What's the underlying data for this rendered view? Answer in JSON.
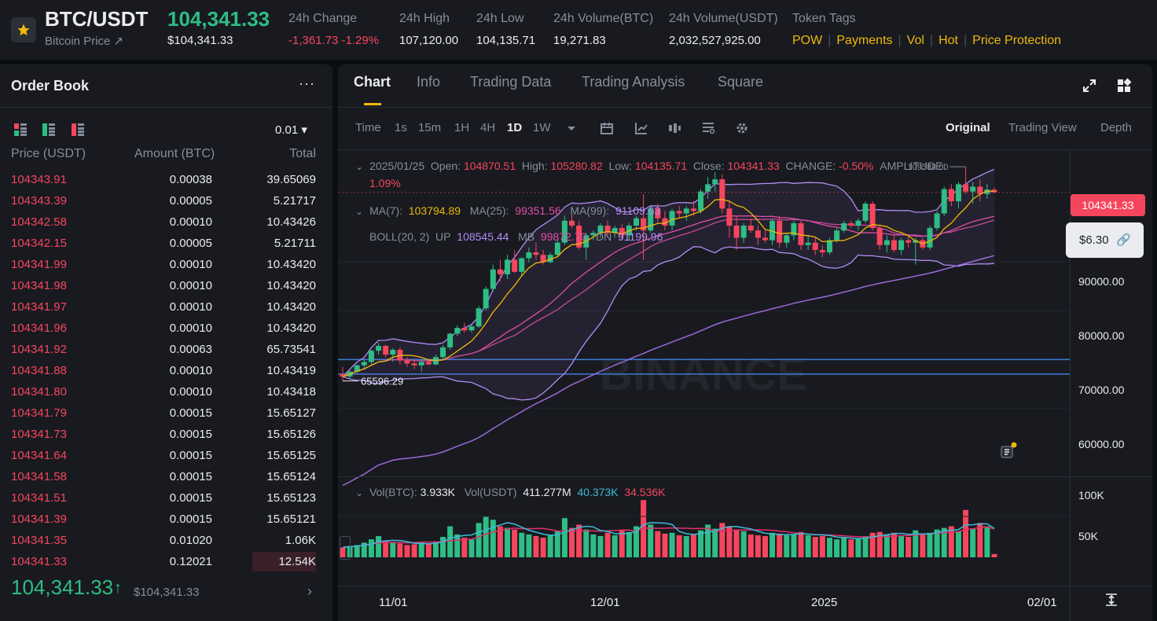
{
  "header": {
    "pair": "BTC/USDT",
    "subtitle": "Bitcoin Price ↗",
    "last_price": "104,341.33",
    "last_price_usd": "$104,341.33",
    "stats": [
      {
        "label": "24h Change",
        "value": "-1,361.73 -1.29%"
      },
      {
        "label": "24h High",
        "value": "107,120.00"
      },
      {
        "label": "24h Low",
        "value": "104,135.71"
      },
      {
        "label": "24h Volume(BTC)",
        "value": "19,271.83"
      },
      {
        "label": "24h Volume(USDT)",
        "value": "2,032,527,925.00"
      }
    ],
    "tags_label": "Token Tags",
    "tags": [
      "POW",
      "Payments",
      "Vol",
      "Hot",
      "Price Protection"
    ]
  },
  "order_book": {
    "title": "Order Book",
    "more": "···",
    "tick": "0.01 ▾",
    "cols": {
      "price": "Price (USDT)",
      "amount": "Amount (BTC)",
      "total": "Total"
    },
    "asks": [
      {
        "price": "104343.91",
        "amount": "0.00038",
        "total": "39.65069"
      },
      {
        "price": "104343.39",
        "amount": "0.00005",
        "total": "5.21717"
      },
      {
        "price": "104342.58",
        "amount": "0.00010",
        "total": "10.43426"
      },
      {
        "price": "104342.15",
        "amount": "0.00005",
        "total": "5.21711"
      },
      {
        "price": "104341.99",
        "amount": "0.00010",
        "total": "10.43420"
      },
      {
        "price": "104341.98",
        "amount": "0.00010",
        "total": "10.43420"
      },
      {
        "price": "104341.97",
        "amount": "0.00010",
        "total": "10.43420"
      },
      {
        "price": "104341.96",
        "amount": "0.00010",
        "total": "10.43420"
      },
      {
        "price": "104341.92",
        "amount": "0.00063",
        "total": "65.73541"
      },
      {
        "price": "104341.88",
        "amount": "0.00010",
        "total": "10.43419"
      },
      {
        "price": "104341.80",
        "amount": "0.00010",
        "total": "10.43418"
      },
      {
        "price": "104341.79",
        "amount": "0.00015",
        "total": "15.65127"
      },
      {
        "price": "104341.73",
        "amount": "0.00015",
        "total": "15.65126"
      },
      {
        "price": "104341.64",
        "amount": "0.00015",
        "total": "15.65125"
      },
      {
        "price": "104341.58",
        "amount": "0.00015",
        "total": "15.65124"
      },
      {
        "price": "104341.51",
        "amount": "0.00015",
        "total": "15.65123"
      },
      {
        "price": "104341.39",
        "amount": "0.00015",
        "total": "15.65121"
      },
      {
        "price": "104341.35",
        "amount": "0.01020",
        "total": "1.06K"
      },
      {
        "price": "104341.33",
        "amount": "0.12021",
        "total": "12.54K"
      }
    ],
    "mid_price": "104,341.33",
    "mid_arrow": "↑",
    "mid_usd": "$104,341.33",
    "mid_chevron": "›"
  },
  "chart": {
    "tabs": [
      "Chart",
      "Info",
      "Trading Data",
      "Trading Analysis",
      "Square"
    ],
    "intervals": [
      "Time",
      "1s",
      "15m",
      "1H",
      "4H",
      "1D",
      "1W"
    ],
    "selected_interval": "1D",
    "views": [
      "Original",
      "Trading View",
      "Depth"
    ],
    "selected_view": "Original",
    "ohlc": {
      "date": "2025/01/25",
      "open_label": "Open:",
      "open": "104870.51",
      "high_label": "High:",
      "high": "105280.82",
      "low_label": "Low:",
      "low": "104135.71",
      "close_label": "Close:",
      "close": "104341.33",
      "change_label": "CHANGE:",
      "change": "-0.50%",
      "amp_label": "AMPLITUDE:",
      "amp": "1.09%"
    },
    "ma": {
      "ma7_label": "MA(7):",
      "ma7": "103794.89",
      "ma25_label": "MA(25):",
      "ma25": "99351.56",
      "ma99_label": "MA(99):",
      "ma99": "91109.63"
    },
    "boll": {
      "label": "BOLL(20, 2)",
      "up_label": "UP",
      "up": "108545.44",
      "mb_label": "MB",
      "mb": "99872.70",
      "dn_label": "DN",
      "dn": "91199.96"
    },
    "high_marker": "109588.00",
    "low_marker": "65596.29",
    "price_axis": [
      "90000.00",
      "80000.00",
      "70000.00",
      "60000.00"
    ],
    "current_price_tag": "104341.33",
    "pnl_tag": "$6.30",
    "volume": {
      "vol_btc_label": "Vol(BTC):",
      "vol_btc": "3.933K",
      "vol_usdt_label": "Vol(USDT)",
      "vol_usdt": "411.277M",
      "ma_a": "40.373K",
      "ma_b": "34.536K",
      "axis": [
        "100K",
        "50K"
      ]
    },
    "dates": [
      "11/01",
      "12/01",
      "2025",
      "02/01"
    ],
    "watermark": "BINANCE",
    "colors": {
      "up": "#2ebd85",
      "down": "#f6465d",
      "accent": "#f0b90b"
    }
  },
  "chart_data": {
    "type": "candlestick",
    "title": "BTC/USDT 1D",
    "ylim": [
      55000,
      112000
    ],
    "yticks": [
      60000,
      70000,
      80000,
      90000
    ],
    "candles": [
      [
        67000,
        68500,
        65600,
        66500
      ],
      [
        66500,
        67800,
        66000,
        67500
      ],
      [
        67500,
        69000,
        67000,
        68800
      ],
      [
        68800,
        70000,
        68000,
        69500
      ],
      [
        69500,
        72000,
        69000,
        71800
      ],
      [
        71800,
        73500,
        71000,
        72800
      ],
      [
        72800,
        73000,
        70500,
        71000
      ],
      [
        71000,
        72300,
        69500,
        72000
      ],
      [
        72000,
        72500,
        69000,
        69800
      ],
      [
        69800,
        70500,
        68500,
        69200
      ],
      [
        69200,
        70000,
        68000,
        68800
      ],
      [
        68800,
        69800,
        67500,
        69500
      ],
      [
        69500,
        70200,
        68800,
        69000
      ],
      [
        69000,
        71000,
        68800,
        70500
      ],
      [
        70500,
        73000,
        70000,
        72500
      ],
      [
        72500,
        75500,
        72000,
        75300
      ],
      [
        75300,
        77000,
        74800,
        76500
      ],
      [
        76500,
        77500,
        75500,
        76000
      ],
      [
        76000,
        77200,
        75500,
        76800
      ],
      [
        76800,
        81000,
        76500,
        80500
      ],
      [
        80500,
        85000,
        80000,
        84500
      ],
      [
        84500,
        89500,
        84000,
        88500
      ],
      [
        88500,
        90500,
        86000,
        87500
      ],
      [
        87500,
        91500,
        86500,
        90500
      ],
      [
        90500,
        92500,
        87800,
        88000
      ],
      [
        88000,
        91000,
        87000,
        90800
      ],
      [
        90800,
        93000,
        90000,
        92000
      ],
      [
        92000,
        94000,
        90500,
        91500
      ],
      [
        91500,
        92500,
        89500,
        90000
      ],
      [
        90000,
        92000,
        89800,
        91500
      ],
      [
        91500,
        94500,
        91000,
        94000
      ],
      [
        94000,
        99500,
        93500,
        98500
      ],
      [
        98500,
        99800,
        97000,
        97500
      ],
      [
        97500,
        98500,
        92500,
        93000
      ],
      [
        93000,
        96000,
        90500,
        95500
      ],
      [
        95500,
        96500,
        94500,
        96000
      ],
      [
        96000,
        98000,
        95000,
        97500
      ],
      [
        97500,
        98500,
        95500,
        96000
      ],
      [
        96000,
        97500,
        95000,
        97000
      ],
      [
        97000,
        97800,
        94500,
        95500
      ],
      [
        95500,
        98000,
        94500,
        97500
      ],
      [
        97500,
        99500,
        96500,
        99000
      ],
      [
        99000,
        104000,
        90500,
        96500
      ],
      [
        96500,
        101500,
        96000,
        101000
      ],
      [
        101000,
        102000,
        98000,
        99000
      ],
      [
        99000,
        100500,
        96500,
        97500
      ],
      [
        97500,
        101000,
        96500,
        100500
      ],
      [
        100500,
        101500,
        99000,
        100000
      ],
      [
        100000,
        101500,
        98500,
        101000
      ],
      [
        101000,
        102500,
        99500,
        100500
      ],
      [
        100500,
        105000,
        100000,
        104500
      ],
      [
        104500,
        107500,
        103000,
        106000
      ],
      [
        106000,
        108500,
        104500,
        107000
      ],
      [
        107000,
        108000,
        100000,
        101000
      ],
      [
        101000,
        102500,
        95000,
        97500
      ],
      [
        97500,
        99500,
        92500,
        95000
      ],
      [
        95000,
        98000,
        94000,
        97500
      ],
      [
        97500,
        99000,
        96000,
        96500
      ],
      [
        96500,
        97500,
        93500,
        95000
      ],
      [
        95000,
        96500,
        94000,
        94500
      ],
      [
        94500,
        99000,
        93500,
        98500
      ],
      [
        98500,
        99500,
        93000,
        94000
      ],
      [
        94000,
        96000,
        93000,
        95500
      ],
      [
        95500,
        98500,
        94500,
        98000
      ],
      [
        98000,
        98500,
        92500,
        93500
      ],
      [
        93500,
        95500,
        92500,
        94000
      ],
      [
        94000,
        95000,
        91500,
        92500
      ],
      [
        92500,
        93500,
        91000,
        92000
      ],
      [
        92000,
        95000,
        91500,
        94500
      ],
      [
        94500,
        97000,
        94000,
        96500
      ],
      [
        96500,
        98500,
        96000,
        98000
      ],
      [
        98000,
        98500,
        97000,
        97500
      ],
      [
        97500,
        99000,
        96500,
        98500
      ],
      [
        98500,
        102500,
        98000,
        102000
      ],
      [
        102000,
        102500,
        96500,
        97000
      ],
      [
        97000,
        97500,
        92500,
        93500
      ],
      [
        93500,
        95500,
        92000,
        94500
      ],
      [
        94500,
        95500,
        92000,
        92500
      ],
      [
        92500,
        95000,
        91500,
        94500
      ],
      [
        94500,
        95500,
        93000,
        94000
      ],
      [
        94000,
        95000,
        89500,
        94500
      ],
      [
        94500,
        95000,
        92500,
        93000
      ],
      [
        93000,
        97500,
        92500,
        97000
      ],
      [
        97000,
        100500,
        96500,
        100000
      ],
      [
        100000,
        105500,
        99500,
        105000
      ],
      [
        105000,
        106000,
        101500,
        102500
      ],
      [
        102500,
        106500,
        101000,
        106000
      ],
      [
        106000,
        109588,
        104000,
        104500
      ],
      [
        104500,
        106500,
        102000,
        105500
      ],
      [
        105500,
        107000,
        102500,
        104000
      ],
      [
        104000,
        106000,
        103000,
        104900
      ],
      [
        104870.51,
        105280.82,
        104135.71,
        104341.33
      ]
    ],
    "volume": [
      12,
      14,
      15,
      18,
      22,
      26,
      20,
      18,
      17,
      15,
      16,
      18,
      17,
      19,
      25,
      38,
      28,
      24,
      22,
      42,
      50,
      46,
      38,
      36,
      34,
      30,
      28,
      26,
      24,
      27,
      32,
      48,
      36,
      40,
      34,
      28,
      26,
      30,
      27,
      33,
      31,
      38,
      70,
      40,
      32,
      29,
      30,
      27,
      26,
      28,
      33,
      40,
      35,
      42,
      38,
      34,
      32,
      28,
      27,
      26,
      30,
      29,
      27,
      28,
      31,
      27,
      25,
      26,
      24,
      22,
      24,
      22,
      23,
      26,
      30,
      31,
      28,
      30,
      27,
      25,
      33,
      28,
      30,
      34,
      36,
      38,
      32,
      58,
      35,
      42,
      38,
      4
    ],
    "ma7": [],
    "ma25": [],
    "ma99": [],
    "boll": "computed"
  }
}
